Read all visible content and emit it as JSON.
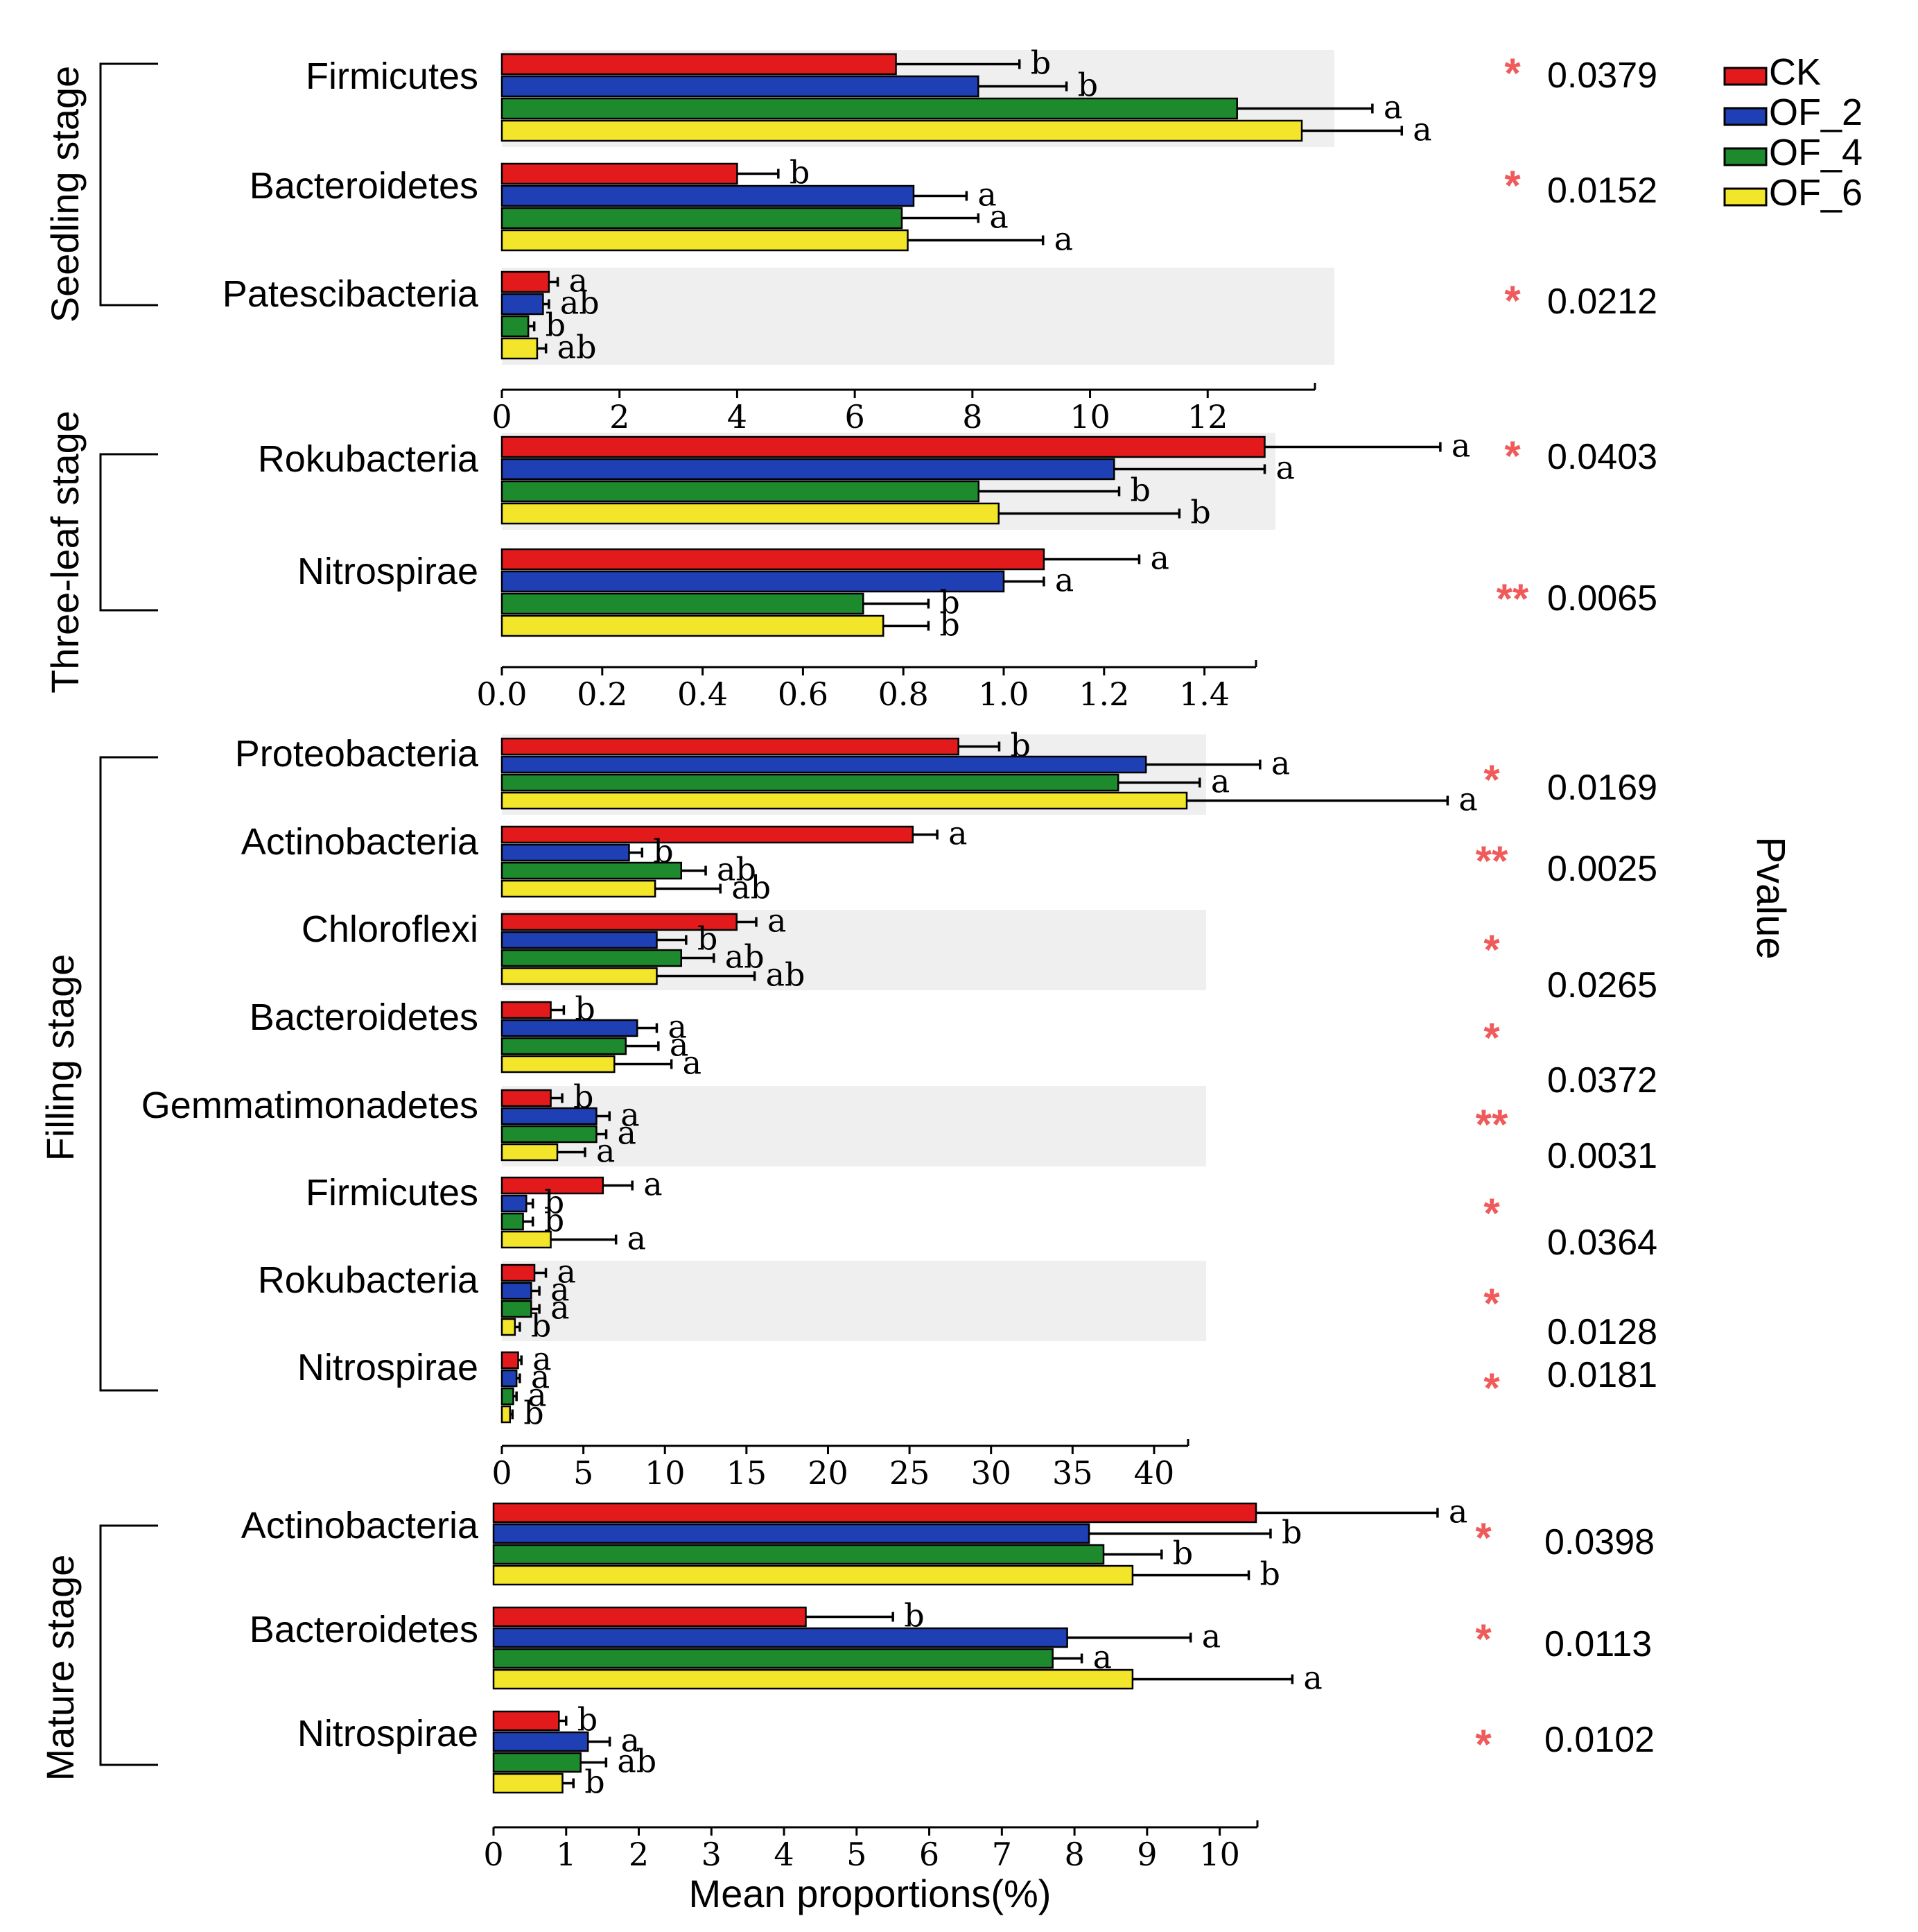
{
  "chart_data": {
    "type": "bar",
    "orientation": "horizontal",
    "xlabel": "Mean proportions(%)",
    "pvalue_label": "Pvalue",
    "legend": [
      {
        "name": "CK",
        "color": "#e31a1c"
      },
      {
        "name": "OF_2",
        "color": "#1f3fb4"
      },
      {
        "name": "OF_4",
        "color": "#1e8a2e"
      },
      {
        "name": "OF_6",
        "color": "#f2e52a"
      }
    ],
    "panels": [
      {
        "stage": "Seedling stage",
        "xlim": [
          0,
          13.8
        ],
        "ticks": [
          0,
          2,
          4,
          6,
          8,
          10,
          12
        ],
        "tick_labels": [
          "0",
          "2",
          "4",
          "6",
          "8",
          "10",
          "12"
        ],
        "taxa": [
          {
            "name": "Firmicutes",
            "values": [
              6.7,
              8.1,
              12.5,
              13.6
            ],
            "errors": [
              2.1,
              1.5,
              2.3,
              1.7
            ],
            "letters": [
              "b",
              "b",
              "a",
              "a"
            ],
            "stars": "*",
            "pvalue": "0.0379"
          },
          {
            "name": "Bacteroidetes",
            "values": [
              4.0,
              7.0,
              6.8,
              6.9
            ],
            "errors": [
              0.7,
              0.9,
              1.3,
              2.3
            ],
            "letters": [
              "b",
              "a",
              "a",
              "a"
            ],
            "stars": "*",
            "pvalue": "0.0152"
          },
          {
            "name": "Patescibacteria",
            "values": [
              0.8,
              0.7,
              0.45,
              0.6
            ],
            "errors": [
              0.15,
              0.1,
              0.1,
              0.15
            ],
            "letters": [
              "a",
              "ab",
              "b",
              "ab"
            ],
            "stars": "*",
            "pvalue": "0.0212"
          }
        ]
      },
      {
        "stage": "Three-leaf stage",
        "xlim": [
          0,
          1.5
        ],
        "ticks": [
          0,
          0.2,
          0.4,
          0.6,
          0.8,
          1.0,
          1.2,
          1.4
        ],
        "tick_labels": [
          "0.0",
          "0.2",
          "0.4",
          "0.6",
          "0.8",
          "1.0",
          "1.2",
          "1.4"
        ],
        "taxa": [
          {
            "name": "Rokubacteria",
            "values": [
              1.52,
              1.22,
              0.95,
              0.99
            ],
            "errors": [
              0.35,
              0.3,
              0.28,
              0.36
            ],
            "letters": [
              "a",
              "a",
              "b",
              "b"
            ],
            "stars": "*",
            "pvalue": "0.0403"
          },
          {
            "name": "Nitrospirae",
            "values": [
              1.08,
              1.0,
              0.72,
              0.76
            ],
            "errors": [
              0.19,
              0.08,
              0.13,
              0.09
            ],
            "letters": [
              "a",
              "a",
              "b",
              "b"
            ],
            "stars": "**",
            "pvalue": "0.0065"
          }
        ]
      },
      {
        "stage": "Filling stage",
        "xlim": [
          0,
          42
        ],
        "ticks": [
          0,
          5,
          10,
          15,
          20,
          25,
          30,
          35,
          40
        ],
        "tick_labels": [
          "0",
          "5",
          "10",
          "15",
          "20",
          "25",
          "30",
          "35",
          "40"
        ],
        "taxa": [
          {
            "name": "Proteobacteria",
            "values": [
              28.0,
              39.5,
              37.8,
              42.0
            ],
            "errors": [
              2.5,
              7.0,
              5.0,
              16.0
            ],
            "letters": [
              "b",
              "a",
              "a",
              "a"
            ],
            "stars": "*",
            "pvalue": "0.0169"
          },
          {
            "name": "Actinobacteria",
            "values": [
              25.2,
              7.8,
              11.0,
              9.4
            ],
            "errors": [
              1.5,
              0.8,
              1.5,
              4.0
            ],
            "letters": [
              "a",
              "b",
              "ab",
              "ab"
            ],
            "stars": "**",
            "pvalue": "0.0025"
          },
          {
            "name": "Chloroflexi",
            "values": [
              14.4,
              9.5,
              11.0,
              9.5
            ],
            "errors": [
              1.2,
              1.8,
              2.0,
              6.0
            ],
            "letters": [
              "a",
              "b",
              "ab",
              "ab"
            ],
            "stars": "*",
            "pvalue": "0.0265"
          },
          {
            "name": "Bacteroidetes",
            "values": [
              3.0,
              8.3,
              7.6,
              6.9
            ],
            "errors": [
              0.8,
              1.2,
              2.0,
              3.5
            ],
            "letters": [
              "b",
              "a",
              "a",
              "a"
            ],
            "stars": "*",
            "pvalue": "0.0372"
          },
          {
            "name": "Gemmatimonadetes",
            "values": [
              3.0,
              5.8,
              5.8,
              3.4
            ],
            "errors": [
              0.7,
              0.8,
              0.6,
              1.7
            ],
            "letters": [
              "b",
              "a",
              "a",
              "a"
            ],
            "stars": "**",
            "pvalue": "0.0031"
          },
          {
            "name": "Firmicutes",
            "values": [
              6.2,
              1.5,
              1.3,
              3.0
            ],
            "errors": [
              1.8,
              0.4,
              0.6,
              4.0
            ],
            "letters": [
              "a",
              "b",
              "b",
              "a"
            ],
            "stars": "*",
            "pvalue": "0.0364"
          },
          {
            "name": "Rokubacteria",
            "values": [
              2.0,
              1.8,
              1.8,
              0.8
            ],
            "errors": [
              0.7,
              0.5,
              0.5,
              0.3
            ],
            "letters": [
              "a",
              "a",
              "a",
              "b"
            ],
            "stars": "*",
            "pvalue": "0.0128"
          },
          {
            "name": "Nitrospirae",
            "values": [
              1.0,
              0.9,
              0.7,
              0.5
            ],
            "errors": [
              0.2,
              0.2,
              0.2,
              0.15
            ],
            "letters": [
              "a",
              "a",
              "a",
              "b"
            ],
            "stars": "*",
            "pvalue": "0.0181"
          }
        ]
      },
      {
        "stage": "Mature stage",
        "xlim": [
          0,
          10.5
        ],
        "ticks": [
          0,
          1,
          2,
          3,
          4,
          5,
          6,
          7,
          8,
          9,
          10
        ],
        "tick_labels": [
          "0",
          "1",
          "2",
          "3",
          "4",
          "5",
          "6",
          "7",
          "8",
          "9",
          "10"
        ],
        "taxa": [
          {
            "name": "Actinobacteria",
            "values": [
              10.5,
              8.2,
              8.4,
              8.8
            ],
            "errors": [
              2.5,
              2.5,
              0.8,
              1.6
            ],
            "letters": [
              "a",
              "b",
              "b",
              "b"
            ],
            "stars": "*",
            "pvalue": "0.0398"
          },
          {
            "name": "Bacteroidetes",
            "values": [
              4.3,
              7.9,
              7.7,
              8.8
            ],
            "errors": [
              1.2,
              1.7,
              0.4,
              2.2
            ],
            "letters": [
              "b",
              "a",
              "a",
              "a"
            ],
            "stars": "*",
            "pvalue": "0.0113"
          },
          {
            "name": "Nitrospirae",
            "values": [
              0.9,
              1.3,
              1.2,
              0.95
            ],
            "errors": [
              0.1,
              0.3,
              0.35,
              0.15
            ],
            "letters": [
              "b",
              "a",
              "ab",
              "b"
            ],
            "stars": "*",
            "pvalue": "0.0102"
          }
        ]
      }
    ]
  }
}
